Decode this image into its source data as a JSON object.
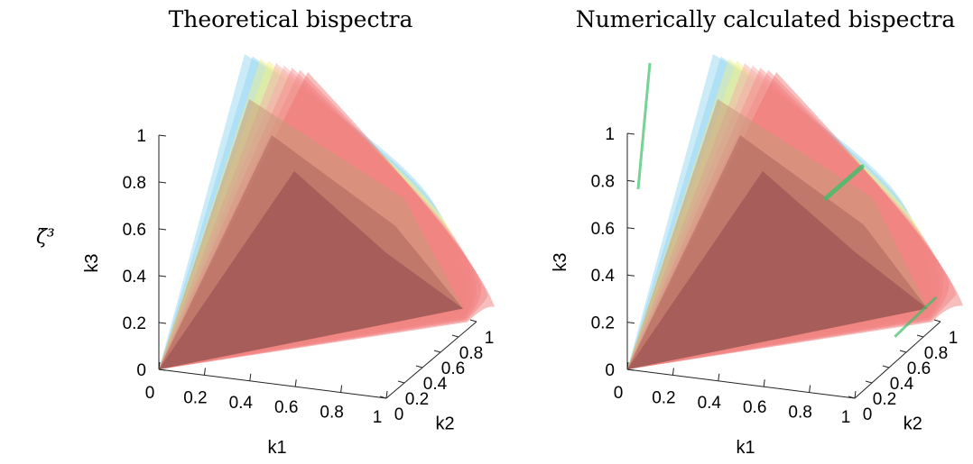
{
  "row_label": "ζ̇³",
  "chart_data": [
    {
      "type": "3d-isosurface",
      "title": "Theoretical bispectra",
      "xlabel": "k1",
      "ylabel": "k2",
      "zlabel": "k3",
      "xlim": [
        0,
        1
      ],
      "ylim": [
        0,
        1
      ],
      "zlim": [
        0,
        1
      ],
      "x_ticks": [
        "0",
        "0.2",
        "0.4",
        "0.6",
        "0.8",
        "1"
      ],
      "y_ticks": [
        "0",
        "0.2",
        "0.4",
        "0.6",
        "0.8",
        "1"
      ],
      "z_ticks": [
        "0",
        "0.2",
        "0.4",
        "0.6",
        "0.8",
        "1"
      ],
      "grid": false,
      "surfaces": [
        {
          "color": "#8fd3f0",
          "opacity": 0.45
        },
        {
          "color": "#f2f08a",
          "opacity": 0.45
        },
        {
          "color": "#f7a8a8",
          "opacity": 0.45
        },
        {
          "color": "#f58a8a",
          "opacity": 0.45
        },
        {
          "color": "#ee6e6e",
          "opacity": 0.45
        }
      ]
    },
    {
      "type": "3d-isosurface",
      "title": "Numerically calculated bispectra",
      "xlabel": "k1",
      "ylabel": "k2",
      "zlabel": "k3",
      "xlim": [
        0,
        1
      ],
      "ylim": [
        0,
        1
      ],
      "zlim": [
        0,
        1
      ],
      "x_ticks": [
        "0",
        "0.2",
        "0.4",
        "0.6",
        "0.8",
        "1"
      ],
      "y_ticks": [
        "0",
        "0.2",
        "0.4",
        "0.6",
        "0.8",
        "1"
      ],
      "z_ticks": [
        "0",
        "0.2",
        "0.4",
        "0.6",
        "0.8",
        "1"
      ],
      "grid": false,
      "surfaces": [
        {
          "color": "#8fd3f0",
          "opacity": 0.45
        },
        {
          "color": "#f2f08a",
          "opacity": 0.45
        },
        {
          "color": "#f7a8a8",
          "opacity": 0.45
        },
        {
          "color": "#f58a8a",
          "opacity": 0.45
        },
        {
          "color": "#ee6e6e",
          "opacity": 0.45
        }
      ],
      "highlight_color": "#3cbf6a"
    }
  ]
}
